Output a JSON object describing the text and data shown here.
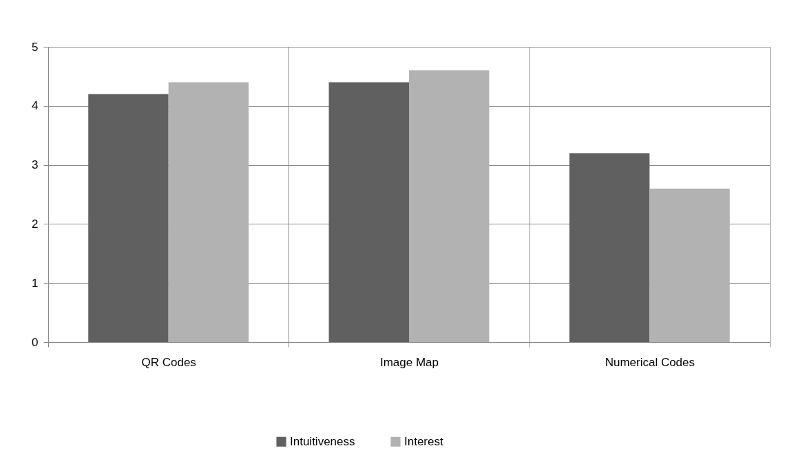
{
  "chart_data": {
    "type": "bar",
    "categories": [
      "QR Codes",
      "Image Map",
      "Numerical Codes"
    ],
    "series": [
      {
        "name": "Intuitiveness",
        "color": "#606060",
        "values": [
          4.2,
          4.4,
          3.2
        ]
      },
      {
        "name": "Interest",
        "color": "#b2b2b2",
        "values": [
          4.4,
          4.6,
          2.6
        ]
      }
    ],
    "ylim": [
      0,
      5
    ],
    "yticks": [
      0,
      1,
      2,
      3,
      4,
      5
    ],
    "grid": true,
    "legend": "bottom"
  }
}
